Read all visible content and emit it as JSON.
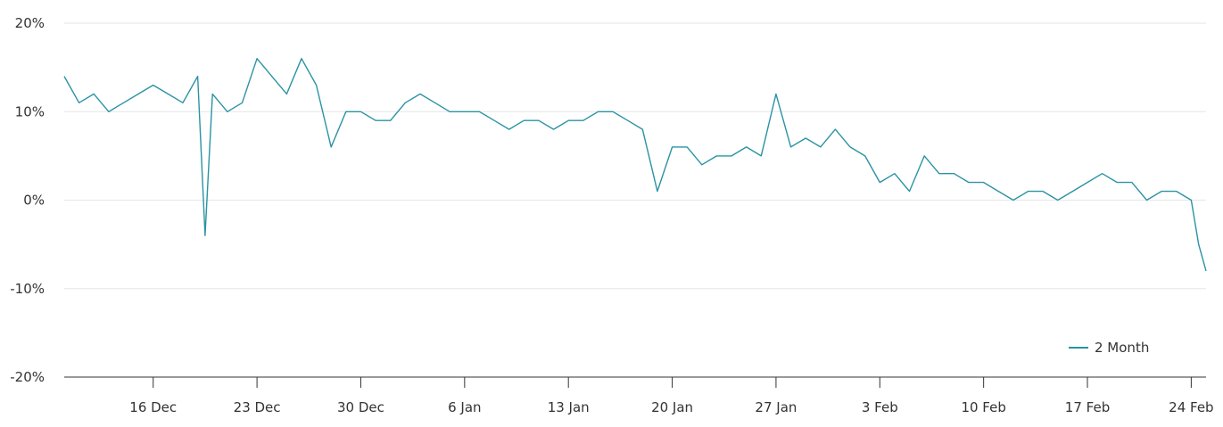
{
  "chart_data": {
    "type": "line",
    "title": "",
    "xlabel": "",
    "ylabel": "",
    "x_ticks": [
      "16 Dec",
      "23 Dec",
      "30 Dec",
      "6 Jan",
      "13 Jan",
      "20 Jan",
      "27 Jan",
      "3 Feb",
      "10 Feb",
      "17 Feb",
      "24 Feb"
    ],
    "y_ticks": [
      "20%",
      "10%",
      "0%",
      "-10%",
      "-20%"
    ],
    "ylim": [
      -20,
      20
    ],
    "xlim": [
      "10 Dec",
      "25 Feb"
    ],
    "grid": "horizontal",
    "legend_position": "bottom-right",
    "colors": {
      "series": "#2a93a3",
      "grid": "#e6e6e6",
      "axis": "#333333"
    },
    "series": [
      {
        "name": "2 Month",
        "x": [
          "10 Dec",
          "11 Dec",
          "12 Dec",
          "13 Dec",
          "14 Dec",
          "15 Dec",
          "16 Dec",
          "17 Dec",
          "18 Dec",
          "19 Dec",
          "19.5 Dec",
          "20 Dec",
          "21 Dec",
          "22 Dec",
          "23 Dec",
          "24 Dec",
          "25 Dec",
          "26 Dec",
          "27 Dec",
          "28 Dec",
          "29 Dec",
          "30 Dec",
          "31 Dec",
          "1 Jan",
          "2 Jan",
          "3 Jan",
          "4 Jan",
          "5 Jan",
          "6 Jan",
          "7 Jan",
          "8 Jan",
          "9 Jan",
          "10 Jan",
          "11 Jan",
          "12 Jan",
          "13 Jan",
          "14 Jan",
          "15 Jan",
          "16 Jan",
          "17 Jan",
          "18 Jan",
          "19 Jan",
          "20 Jan",
          "21 Jan",
          "22 Jan",
          "23 Jan",
          "24 Jan",
          "25 Jan",
          "26 Jan",
          "27 Jan",
          "28 Jan",
          "29 Jan",
          "30 Jan",
          "31 Jan",
          "1 Feb",
          "2 Feb",
          "3 Feb",
          "4 Feb",
          "5 Feb",
          "6 Feb",
          "7 Feb",
          "8 Feb",
          "9 Feb",
          "10 Feb",
          "11 Feb",
          "12 Feb",
          "13 Feb",
          "14 Feb",
          "15 Feb",
          "16 Feb",
          "17 Feb",
          "18 Feb",
          "19 Feb",
          "20 Feb",
          "21 Feb",
          "22 Feb",
          "23 Feb",
          "24 Feb",
          "24.5 Feb",
          "25 Feb"
        ],
        "values": [
          14,
          11,
          12,
          10,
          11,
          12,
          13,
          12,
          11,
          14,
          -4,
          12,
          10,
          11,
          16,
          14,
          12,
          16,
          13,
          6,
          10,
          10,
          9,
          9,
          11,
          12,
          11,
          10,
          10,
          10,
          9,
          8,
          9,
          9,
          8,
          9,
          9,
          10,
          10,
          9,
          8,
          1,
          6,
          6,
          4,
          5,
          5,
          6,
          5,
          12,
          6,
          7,
          6,
          8,
          6,
          5,
          2,
          3,
          1,
          5,
          3,
          3,
          2,
          2,
          1,
          0,
          1,
          1,
          0,
          1,
          2,
          3,
          2,
          2,
          0,
          1,
          1,
          0,
          -5,
          -8
        ]
      }
    ]
  }
}
